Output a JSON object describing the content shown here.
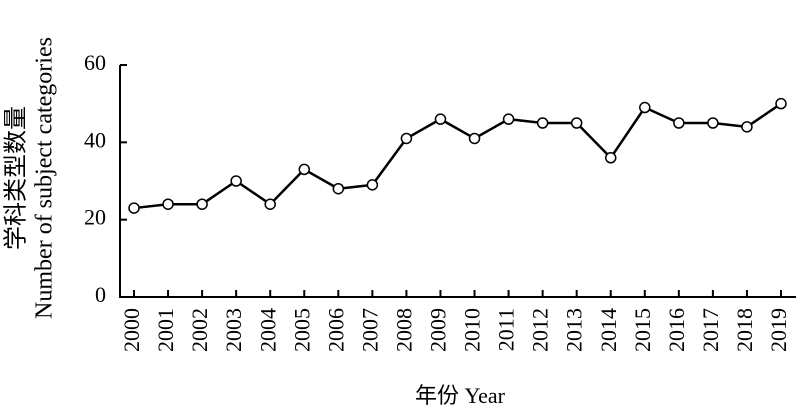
{
  "chart_data": {
    "type": "line",
    "x_label": "年份 Year",
    "y_label": [
      "学科类型数量",
      "Number of subject categories"
    ],
    "categories": [
      "2000",
      "2001",
      "2002",
      "2003",
      "2004",
      "2005",
      "2006",
      "2007",
      "2008",
      "2009",
      "2010",
      "2011",
      "2012",
      "2013",
      "2014",
      "2015",
      "2016",
      "2017",
      "2018",
      "2019"
    ],
    "values": [
      23,
      24,
      24,
      30,
      24,
      33,
      28,
      29,
      41,
      46,
      41,
      46,
      45,
      45,
      36,
      49,
      45,
      45,
      44,
      50
    ],
    "color": "#000000",
    "ylim": [
      0,
      60
    ],
    "yticks": [
      0,
      20,
      40,
      60
    ],
    "grid": false
  }
}
